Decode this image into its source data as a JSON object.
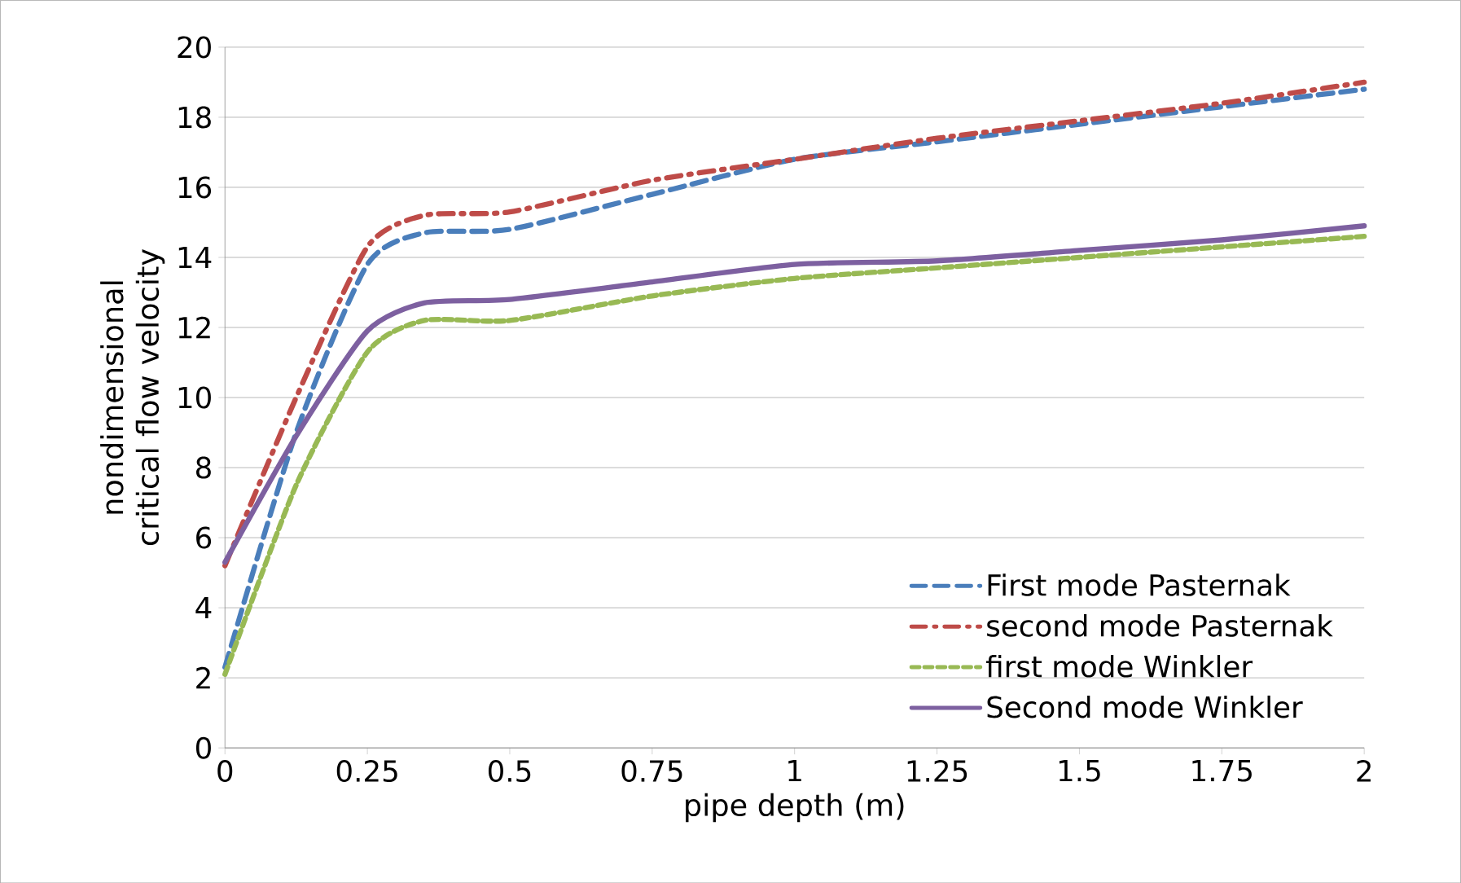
{
  "chart_data": {
    "type": "line",
    "xlabel": "pipe depth (m)",
    "ylabel": "nondimensional critical flow velocity",
    "xlim": [
      0,
      2
    ],
    "xticks": [
      0,
      0.25,
      0.5,
      0.75,
      1,
      1.25,
      1.5,
      1.75,
      2
    ],
    "ylim": [
      0,
      20
    ],
    "yticks": [
      0,
      2,
      4,
      6,
      8,
      10,
      12,
      14,
      16,
      18,
      20
    ],
    "grid": "y",
    "legend": "bottom right",
    "marker": "none",
    "x": [
      0,
      0.125,
      0.25,
      0.35,
      0.5,
      0.75,
      1,
      1.25,
      1.5,
      1.75,
      2
    ],
    "series": [
      {
        "name": "First mode Pasternak",
        "color": "#4a7ebb",
        "line_style": "dashed",
        "values": [
          2.3,
          9.0,
          13.8,
          14.7,
          14.8,
          15.8,
          16.8,
          17.3,
          17.8,
          18.3,
          18.8
        ]
      },
      {
        "name": "second mode Pasternak",
        "color": "#be4b48",
        "line_style": "dashdot",
        "values": [
          5.2,
          10.0,
          14.3,
          15.2,
          15.3,
          16.2,
          16.8,
          17.4,
          17.9,
          18.4,
          19.0
        ]
      },
      {
        "name": "first mode Winkler",
        "color": "#98b954",
        "line_style": "dashed_short",
        "values": [
          2.1,
          7.5,
          11.3,
          12.2,
          12.2,
          12.9,
          13.4,
          13.7,
          14.0,
          14.3,
          14.6
        ]
      },
      {
        "name": "Second mode Winkler",
        "color": "#7d60a0",
        "line_style": "solid",
        "values": [
          5.3,
          8.9,
          11.9,
          12.7,
          12.8,
          13.3,
          13.8,
          13.9,
          14.2,
          14.5,
          14.9
        ]
      }
    ]
  }
}
